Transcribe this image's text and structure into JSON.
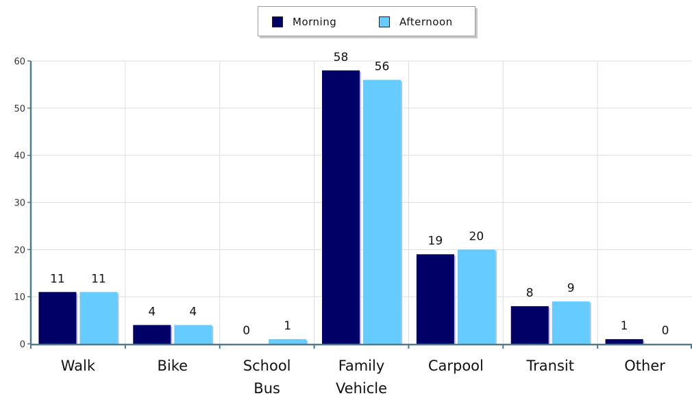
{
  "chart_data": {
    "type": "bar",
    "categories": [
      "Walk",
      "Bike",
      "School Bus",
      "Family Vehicle",
      "Carpool",
      "Transit",
      "Other"
    ],
    "category_lines": [
      [
        "Walk"
      ],
      [
        "Bike"
      ],
      [
        "School",
        "Bus"
      ],
      [
        "Family",
        "Vehicle"
      ],
      [
        "Carpool"
      ],
      [
        "Transit"
      ],
      [
        "Other"
      ]
    ],
    "series": [
      {
        "name": "Morning",
        "values": [
          11,
          4,
          0,
          58,
          19,
          8,
          1
        ],
        "color": "#000066"
      },
      {
        "name": "Afternoon",
        "values": [
          11,
          4,
          1,
          56,
          20,
          9,
          0
        ],
        "color": "#66ccff"
      }
    ],
    "ylim": [
      0,
      60
    ],
    "yticks": [
      0,
      10,
      20,
      30,
      40,
      50,
      60
    ],
    "grid": true,
    "legend_position": "top-center"
  },
  "legend": {
    "morning_label": "Morning",
    "afternoon_label": "Afternoon"
  },
  "colors": {
    "morning": "#000066",
    "afternoon": "#66ccff",
    "axis": "#4d7a8c",
    "grid": "#dddddd"
  }
}
